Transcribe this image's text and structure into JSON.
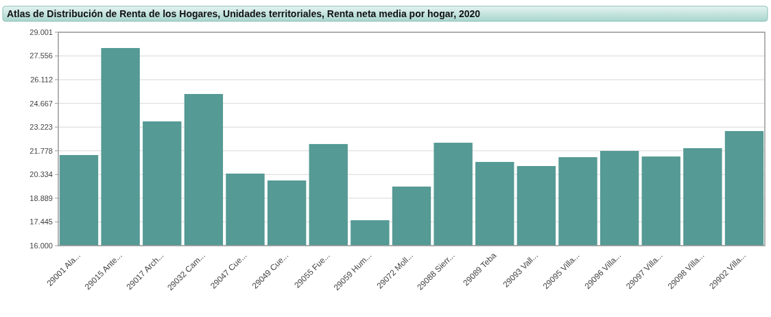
{
  "chart_data": {
    "type": "bar",
    "title": "Atlas de Distribución de Renta de los Hogares, Unidades territoriales, Renta neta media por hogar, 2020",
    "categories": [
      "29001 Ala...",
      "29015 Ante...",
      "29017 Arch...",
      "29032 Cam...",
      "29047 Cue...",
      "29049 Cue...",
      "29055 Fue...",
      "29059 Hum...",
      "29072 Moll...",
      "29088 Sierr...",
      "29089 Teba",
      "29093 Vall...",
      "29095 Villa...",
      "29096 Villa...",
      "29097 Villa...",
      "29098 Villa...",
      "29902 Villa..."
    ],
    "values": [
      21520,
      28040,
      23570,
      25240,
      20390,
      19970,
      22190,
      17550,
      19600,
      22270,
      21100,
      20850,
      21390,
      21770,
      21430,
      21940,
      22980
    ],
    "color": "#559a94",
    "ylim": [
      16000,
      29001
    ],
    "yticks": [
      {
        "value": 16000,
        "label": "16.000"
      },
      {
        "value": 17445,
        "label": "17.445"
      },
      {
        "value": 18889,
        "label": "18.889"
      },
      {
        "value": 20334,
        "label": "20.334"
      },
      {
        "value": 21778,
        "label": "21.778"
      },
      {
        "value": 23223,
        "label": "23.223"
      },
      {
        "value": 24667,
        "label": "24.667"
      },
      {
        "value": 26112,
        "label": "26.112"
      },
      {
        "value": 27556,
        "label": "27.556"
      },
      {
        "value": 29001,
        "label": "29.001"
      }
    ],
    "grid": "y"
  }
}
